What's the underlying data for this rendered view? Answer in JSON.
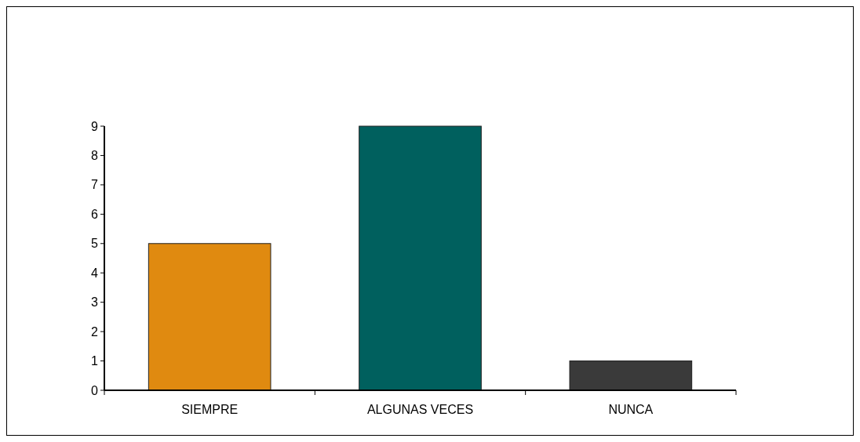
{
  "chart_data": {
    "type": "bar",
    "categories": [
      "SIEMPRE",
      "ALGUNAS VECES",
      "NUNCA"
    ],
    "values": [
      5,
      9,
      1
    ],
    "colors": [
      "#e08a10",
      "#00605e",
      "#3a3a3a"
    ],
    "ylim": [
      0,
      9
    ],
    "yticks": [
      0,
      1,
      2,
      3,
      4,
      5,
      6,
      7,
      8,
      9
    ],
    "grid": false,
    "legend": false
  }
}
